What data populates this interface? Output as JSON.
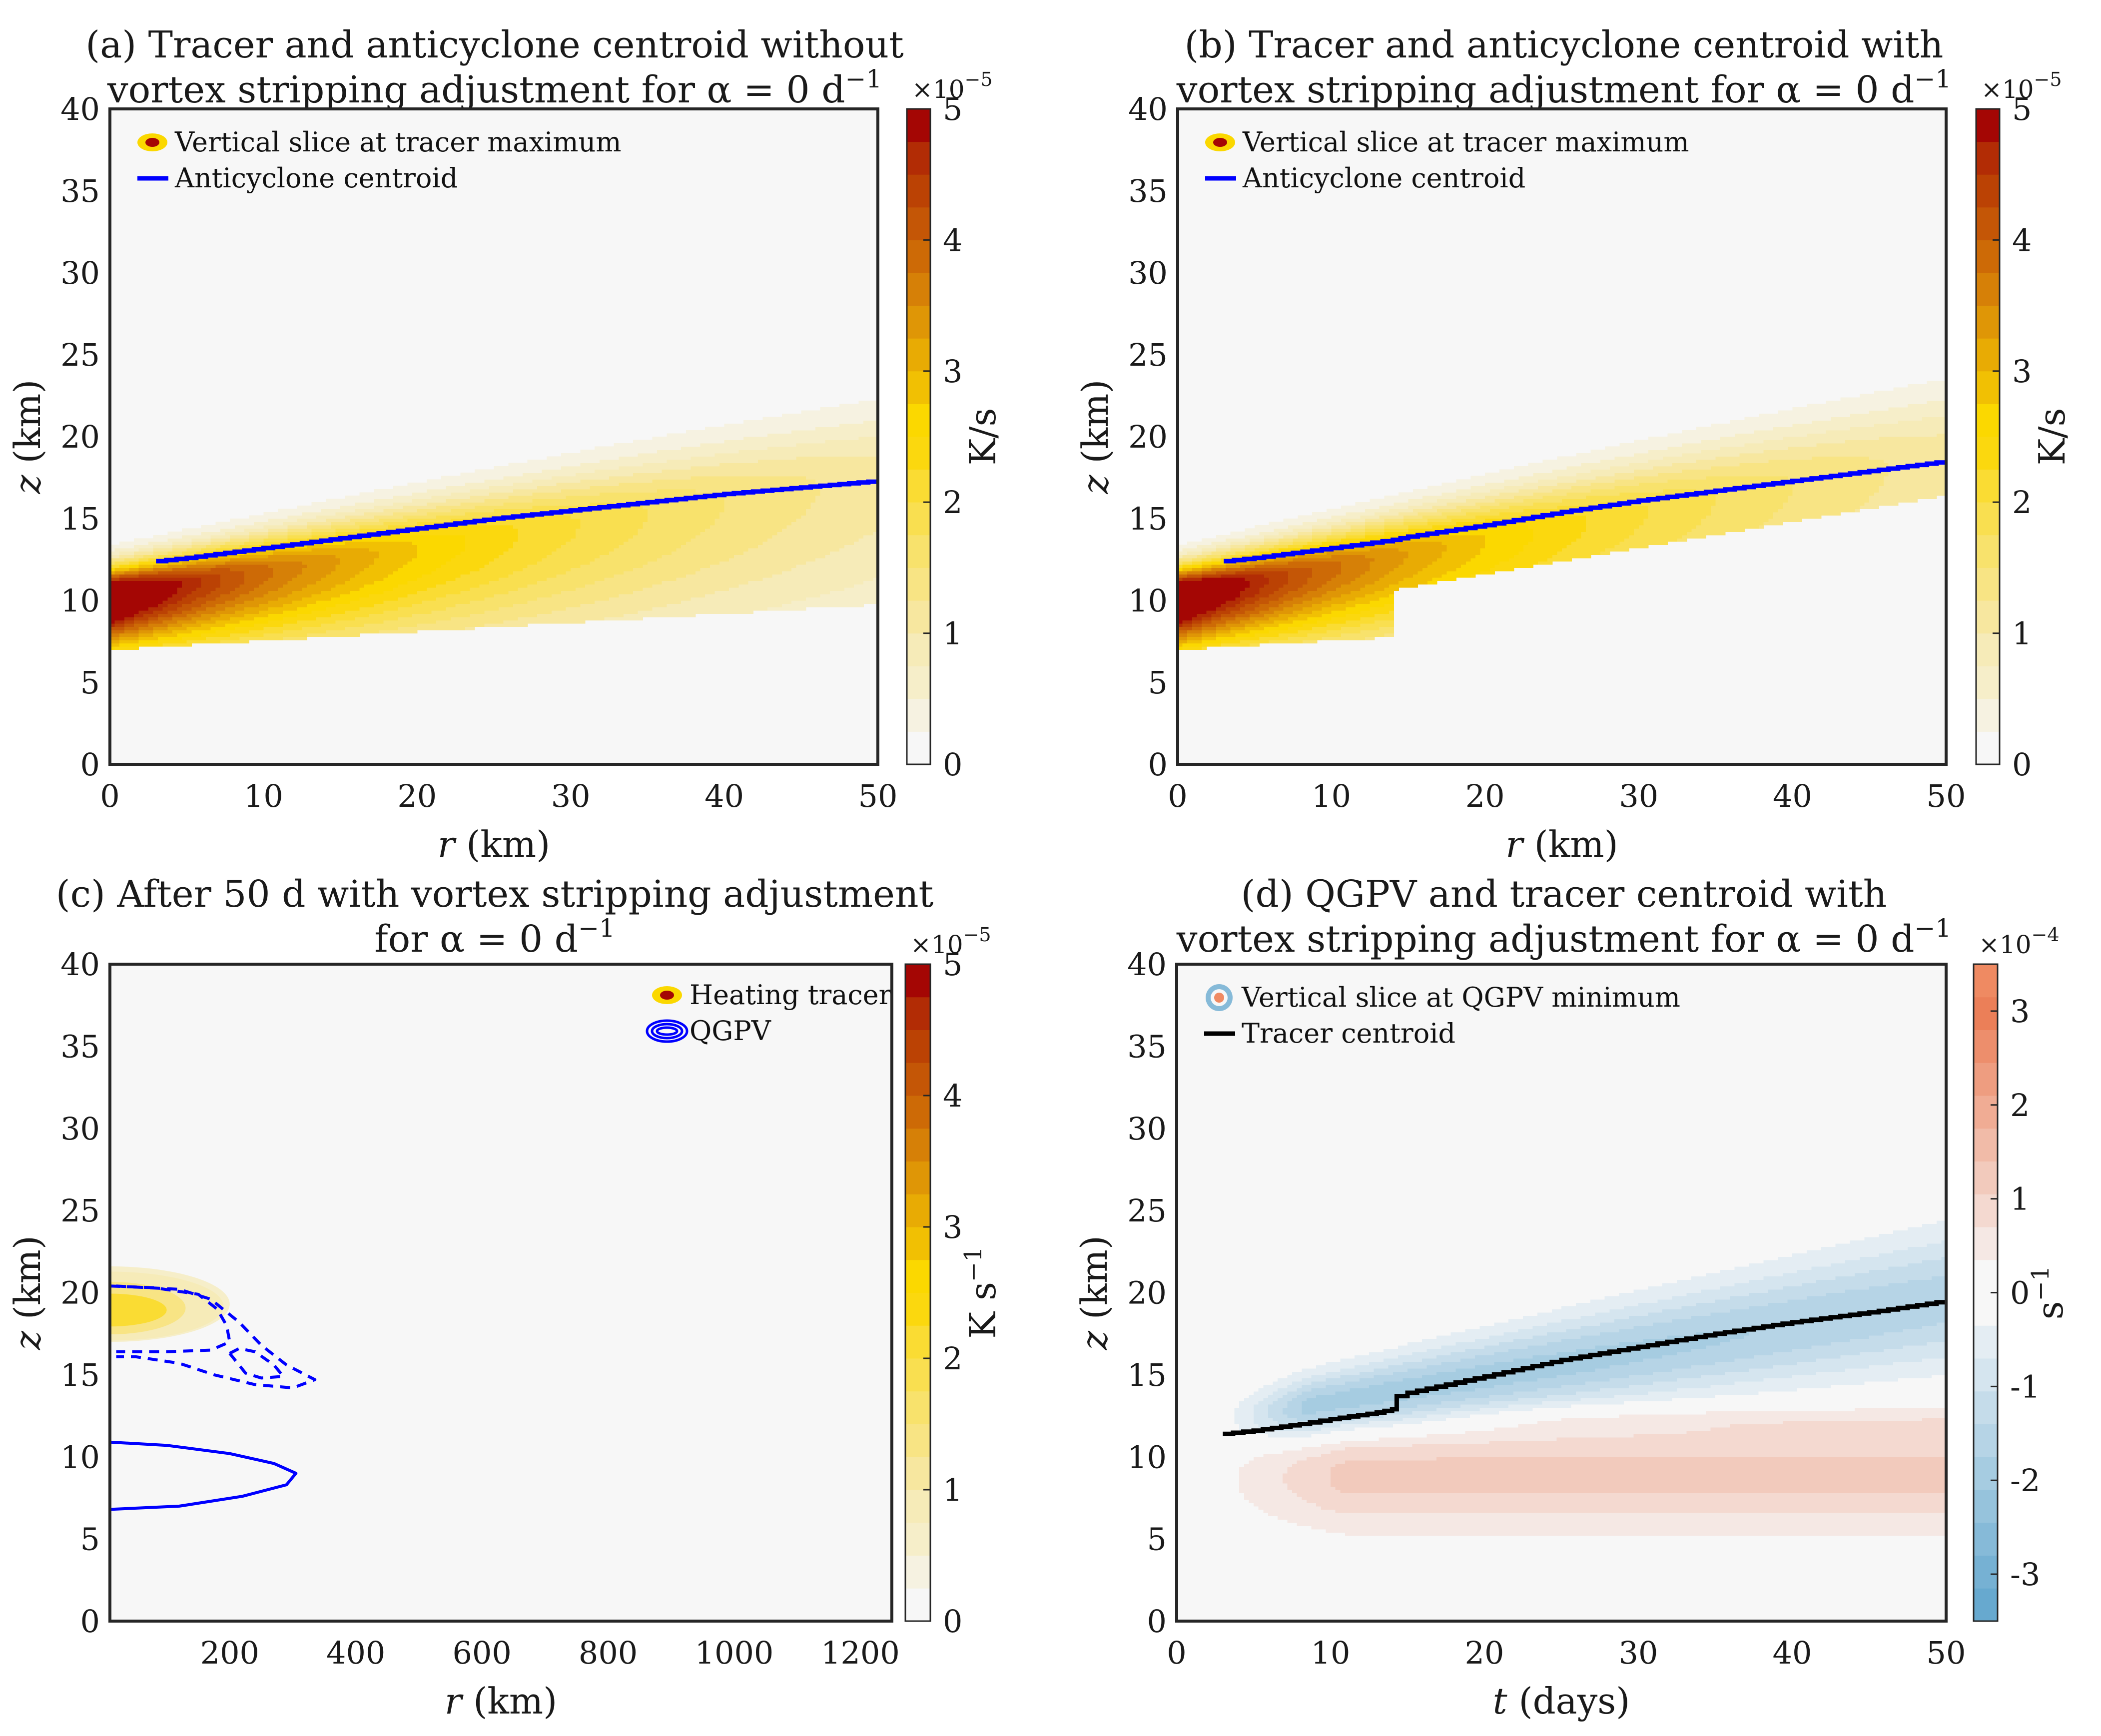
{
  "figure": {
    "colors": {
      "background": "#f7f7f7",
      "anticyclone_line": "#0000ff",
      "qgpv_contour": "#0000ff",
      "tracer_centroid_line": "#000000",
      "heat_levels": [
        "#f7f7f7",
        "#f6f2e1",
        "#f6eec9",
        "#f6ebb8",
        "#f7e79f",
        "#f8e484",
        "#f8e26c",
        "#f9df50",
        "#fadc33",
        "#fbd80e",
        "#fbd800",
        "#f1c003",
        "#e8ab04",
        "#df9606",
        "#d68007",
        "#cd6a06",
        "#c45606",
        "#bb4204",
        "#b22c05",
        "#a40604"
      ],
      "div_levels": [
        "#67a9cf",
        "#76b1d3",
        "#86bad8",
        "#96c3dc",
        "#a6cce1",
        "#b6d4e6",
        "#c5dcea",
        "#d5e5ef",
        "#e4edf3",
        "#f7f7f7",
        "#f7f7f7",
        "#f5e8e4",
        "#f4d9d0",
        "#f2cabc",
        "#f1bba8",
        "#f0ac94",
        "#ee9d80",
        "#ed8e6c",
        "#eb7f58",
        "#ef8a62"
      ]
    }
  },
  "chart_data": [
    {
      "id": "a",
      "type": "heatmap",
      "title_line1": "(a) Tracer and anticyclone centroid without",
      "title_line2": "vortex stripping adjustment for α = 0 d",
      "title_sup": "−1",
      "xlabel": "r (km)",
      "xlabel_italic": "r",
      "xlabel_rest": " (km)",
      "ylabel": "z (km)",
      "ylabel_italic": "z",
      "ylabel_rest": " (km)",
      "xlim": [
        0,
        50
      ],
      "ylim": [
        0,
        40
      ],
      "xticks": [
        0,
        10,
        20,
        30,
        40,
        50
      ],
      "yticks": [
        0,
        5,
        10,
        15,
        20,
        25,
        30,
        35,
        40
      ],
      "colorbar": {
        "label": "K/s",
        "exponent_base": "×10",
        "exponent": "−5",
        "range": [
          0,
          5
        ],
        "ticks": [
          0,
          1,
          2,
          3,
          4,
          5
        ],
        "levels": 20,
        "palette": "heat"
      },
      "legend": {
        "placement": "top-left",
        "entries": [
          {
            "label": "Vertical slice at tracer maximum",
            "marker": "filled-contour-heat"
          },
          {
            "label": "Anticyclone centroid",
            "marker": "line-blue"
          }
        ]
      },
      "field": {
        "kind": "tracer",
        "z0": 10.0,
        "slope": 0.145,
        "cutoff_r": null,
        "peak": 5.0,
        "decay_r": 0.03
      },
      "series": [
        {
          "name": "Anticyclone centroid",
          "x": [
            3,
            5,
            10,
            15,
            20,
            25,
            30,
            35,
            40,
            45,
            50
          ],
          "y": [
            12.4,
            12.6,
            13.2,
            13.8,
            14.4,
            15.0,
            15.5,
            16.0,
            16.5,
            16.9,
            17.3
          ]
        }
      ]
    },
    {
      "id": "b",
      "type": "heatmap",
      "title_line1": "(b) Tracer and anticyclone centroid with",
      "title_line2": "vortex stripping adjustment for α = 0 d",
      "title_sup": "−1",
      "xlabel": "r (km)",
      "xlabel_italic": "r",
      "xlabel_rest": " (km)",
      "ylabel": "z (km)",
      "ylabel_italic": "z",
      "ylabel_rest": " (km)",
      "xlim": [
        0,
        50
      ],
      "ylim": [
        0,
        40
      ],
      "xticks": [
        0,
        10,
        20,
        30,
        40,
        50
      ],
      "yticks": [
        0,
        5,
        10,
        15,
        20,
        25,
        30,
        35,
        40
      ],
      "colorbar": {
        "label": "K/s",
        "exponent_base": "×10",
        "exponent": "−5",
        "range": [
          0,
          5
        ],
        "ticks": [
          0,
          1,
          2,
          3,
          4,
          5
        ],
        "levels": 20,
        "palette": "heat"
      },
      "legend": {
        "placement": "top-left",
        "entries": [
          {
            "label": "Vertical slice at tracer maximum",
            "marker": "filled-contour-heat"
          },
          {
            "label": "Anticyclone centroid",
            "marker": "line-blue"
          }
        ]
      },
      "field": {
        "kind": "tracer",
        "z0": 10.0,
        "slope": 0.17,
        "cutoff_r": 14,
        "peak": 5.0,
        "decay_r": 0.03
      },
      "series": [
        {
          "name": "Anticyclone centroid",
          "x": [
            3,
            5,
            10,
            14,
            15,
            20,
            25,
            30,
            35,
            40,
            45,
            50
          ],
          "y": [
            12.4,
            12.6,
            13.2,
            13.7,
            13.9,
            14.6,
            15.4,
            16.1,
            16.7,
            17.3,
            17.9,
            18.5
          ]
        }
      ]
    },
    {
      "id": "c",
      "type": "heatmap",
      "title_line1": "(c) After 50 d with vortex stripping adjustment",
      "title_line2": "for α = 0 d",
      "title_sup": "−1",
      "xlabel": "r (km)",
      "xlabel_italic": "r",
      "xlabel_rest": " (km)",
      "ylabel": "z (km)",
      "ylabel_italic": "z",
      "ylabel_rest": " (km)",
      "xlim": [
        10,
        1250
      ],
      "ylim": [
        0,
        40
      ],
      "xticks": [
        200,
        400,
        600,
        800,
        1000,
        1200
      ],
      "yticks": [
        0,
        5,
        10,
        15,
        20,
        25,
        30,
        35,
        40
      ],
      "colorbar": {
        "label": "K s",
        "label_sup": "−1",
        "exponent_base": "×10",
        "exponent": "−5",
        "range": [
          0,
          5
        ],
        "ticks": [
          0,
          1,
          2,
          3,
          4,
          5
        ],
        "levels": 20,
        "palette": "heat"
      },
      "legend": {
        "placement": "top-right",
        "entries": [
          {
            "label": "Heating tracer",
            "marker": "filled-contour-heat"
          },
          {
            "label": "QGPV",
            "marker": "contour-blue"
          }
        ]
      },
      "tracer_blob": {
        "r_center": 10,
        "z_center": 19.3,
        "levels": [
          0.25,
          0.5,
          1.0,
          1.75
        ],
        "r_extent": [
          200,
          190,
          130,
          100
        ],
        "z_half": [
          2.3,
          2.1,
          1.6,
          1.0
        ]
      },
      "qgpv_contours": [
        {
          "style": "solid",
          "sign": "positive",
          "points": [
            [
              10,
              10.9
            ],
            [
              100,
              10.7
            ],
            [
              200,
              10.2
            ],
            [
              270,
              9.6
            ],
            [
              305,
              9.0
            ],
            [
              290,
              8.3
            ],
            [
              220,
              7.6
            ],
            [
              120,
              7.0
            ],
            [
              10,
              6.8
            ]
          ]
        },
        {
          "style": "dashed",
          "sign": "negative",
          "points": [
            [
              10,
              20.4
            ],
            [
              80,
              20.3
            ],
            [
              150,
              19.9
            ],
            [
              180,
              19.0
            ],
            [
              195,
              18.0
            ],
            [
              200,
              17.0
            ],
            [
              170,
              16.5
            ],
            [
              100,
              16.4
            ],
            [
              20,
              16.4
            ]
          ]
        },
        {
          "style": "dashed",
          "sign": "negative",
          "points": [
            [
              20,
              20.4
            ],
            [
              120,
              20.2
            ],
            [
              170,
              19.6
            ],
            [
              215,
              18.2
            ],
            [
              250,
              16.8
            ],
            [
              290,
              15.6
            ],
            [
              335,
              14.7
            ],
            [
              300,
              14.2
            ],
            [
              240,
              14.4
            ],
            [
              175,
              15.0
            ],
            [
              120,
              15.7
            ],
            [
              50,
              16.1
            ],
            [
              20,
              16.1
            ]
          ]
        },
        {
          "style": "dashed",
          "sign": "negative",
          "points": [
            [
              200,
              16.3
            ],
            [
              215,
              16.6
            ],
            [
              240,
              16.4
            ],
            [
              270,
              15.6
            ],
            [
              285,
              14.9
            ],
            [
              250,
              14.8
            ],
            [
              225,
              15.1
            ],
            [
              200,
              16.3
            ]
          ]
        }
      ]
    },
    {
      "id": "d",
      "type": "heatmap",
      "title_line1": "(d) QGPV and tracer centroid with",
      "title_line2": "vortex stripping adjustment for α = 0 d",
      "title_sup": "−1",
      "xlabel": "t (days)",
      "xlabel_italic": "t",
      "xlabel_rest": " (days)",
      "ylabel": "z (km)",
      "ylabel_italic": "z",
      "ylabel_rest": " (km)",
      "xlim": [
        0,
        50
      ],
      "ylim": [
        0,
        40
      ],
      "xticks": [
        0,
        10,
        20,
        30,
        40,
        50
      ],
      "yticks": [
        0,
        5,
        10,
        15,
        20,
        25,
        30,
        35,
        40
      ],
      "colorbar": {
        "label": "s",
        "label_sup": "−1",
        "exponent_base": "×10",
        "exponent": "−4",
        "range": [
          -3.5,
          3.5
        ],
        "ticks": [
          -3,
          -2,
          -1,
          0,
          1,
          2,
          3
        ],
        "levels": 20,
        "palette": "div"
      },
      "legend": {
        "placement": "top-left",
        "entries": [
          {
            "label": "Vertical slice at QGPV minimum",
            "marker": "filled-contour-div"
          },
          {
            "label": "Tracer centroid",
            "marker": "line-black"
          }
        ]
      },
      "field": {
        "kind": "qgpv",
        "neg_z0": 11.8,
        "neg_slope": 0.16,
        "pos_bands": [
          {
            "z": 12.3,
            "half": 0.6,
            "start_t": 17,
            "value": 0.35
          },
          {
            "z": 8.9,
            "half": 2.3,
            "start_t": 3,
            "value": 1.2
          }
        ]
      },
      "series": [
        {
          "name": "Tracer centroid",
          "x": [
            3,
            5,
            8,
            10,
            13,
            14,
            14.3,
            15,
            20,
            25,
            30,
            35,
            40,
            45,
            50
          ],
          "y": [
            11.4,
            11.6,
            12.0,
            12.3,
            12.7,
            12.9,
            13.7,
            13.9,
            14.9,
            15.9,
            16.7,
            17.5,
            18.2,
            18.8,
            19.5
          ]
        }
      ]
    }
  ]
}
